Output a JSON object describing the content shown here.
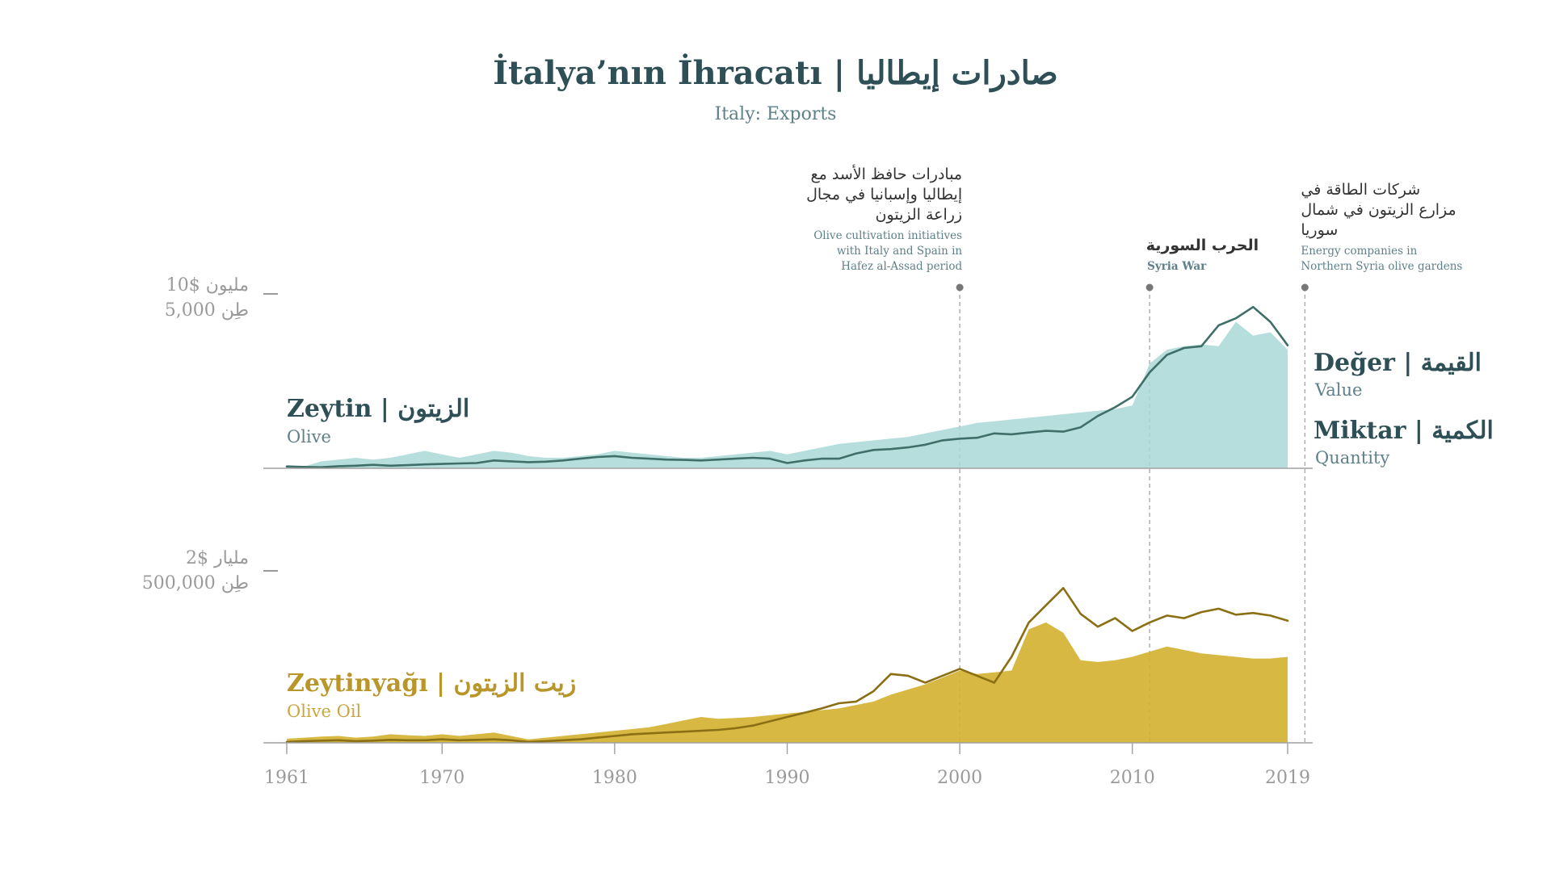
{
  "title": "İtalya’nın İhracatı  |  صادرات إيطاليا",
  "subtitle": "Italy: Exports",
  "colors": {
    "olive_line": "#3f6f68",
    "olive_area": "#a9d8d6",
    "oil_line": "#8a6f14",
    "oil_area": "#d4b232",
    "text_dark": "#2d4f55",
    "gold_text": "#b8962a",
    "axis": "#9a9a9a",
    "guide": "#aaaaaa"
  },
  "annotations": [
    {
      "year": 2000,
      "ar": [
        "مبادرات حافظ الأسد مع",
        "إيطاليا وإسبانيا في مجال",
        "زراعة الزيتون"
      ],
      "en": [
        "Olive cultivation initiatives",
        "with Italy and Spain in",
        "Hafez al-Assad period"
      ],
      "bold": false
    },
    {
      "year": 2011,
      "ar": [
        "الحرب السورية"
      ],
      "en": [
        "Syria War"
      ],
      "bold": true
    },
    {
      "year": 2020,
      "ar": [
        "شركات الطاقة في",
        "مزارع الزيتون في شمال",
        "سوريا"
      ],
      "en": [
        "Energy companies in",
        "Northern Syria olive gardens"
      ],
      "bold": false
    }
  ],
  "legend_right": {
    "value_title": "Değer | القيمة",
    "value_sub": "Value",
    "quantity_title": "Miktar | الكمية",
    "quantity_sub": "Quantity"
  },
  "chart_data": [
    {
      "type": "area",
      "name": "Zeytin | الزيتون",
      "subtitle": "Olive",
      "scale_label": [
        "مليون $10",
        "طِن 5,000"
      ],
      "value_max_usd": 10000000,
      "quantity_max_tonnes": 5000,
      "x": [
        1961,
        1962,
        1963,
        1964,
        1965,
        1966,
        1967,
        1968,
        1969,
        1970,
        1971,
        1972,
        1973,
        1974,
        1975,
        1976,
        1977,
        1978,
        1979,
        1980,
        1981,
        1982,
        1983,
        1984,
        1985,
        1986,
        1987,
        1988,
        1989,
        1990,
        1991,
        1992,
        1993,
        1994,
        1995,
        1996,
        1997,
        1998,
        1999,
        2000,
        2001,
        2002,
        2003,
        2004,
        2005,
        2006,
        2007,
        2008,
        2009,
        2010,
        2011,
        2012,
        2013,
        2014,
        2015,
        2016,
        2017,
        2018,
        2019
      ],
      "series": [
        {
          "name": "Value",
          "values_usd": [
            100000,
            80000,
            60000,
            120000,
            150000,
            200000,
            150000,
            180000,
            220000,
            250000,
            280000,
            300000,
            450000,
            400000,
            350000,
            380000,
            450000,
            550000,
            650000,
            700000,
            600000,
            550000,
            500000,
            480000,
            450000,
            500000,
            550000,
            600000,
            550000,
            300000,
            450000,
            550000,
            550000,
            850000,
            1050000,
            1100000,
            1200000,
            1350000,
            1600000,
            1700000,
            1750000,
            2000000,
            1950000,
            2050000,
            2150000,
            2100000,
            2350000,
            3000000,
            3500000,
            4100000,
            5500000,
            6500000,
            6900000,
            7000000,
            8200000,
            8600000,
            9250000,
            8400000,
            7050000
          ]
        },
        {
          "name": "Quantity",
          "values_tonnes": [
            100,
            50,
            200,
            250,
            300,
            250,
            300,
            400,
            500,
            400,
            300,
            400,
            500,
            450,
            350,
            300,
            300,
            350,
            400,
            500,
            450,
            400,
            350,
            300,
            300,
            350,
            400,
            450,
            500,
            400,
            500,
            600,
            700,
            750,
            800,
            850,
            900,
            1000,
            1100,
            1200,
            1300,
            1350,
            1400,
            1450,
            1500,
            1550,
            1600,
            1650,
            1700,
            1800,
            3000,
            3400,
            3500,
            3550,
            3500,
            4200,
            3800,
            3900,
            3400
          ]
        }
      ]
    },
    {
      "type": "area",
      "name": "Zeytinyağı | زيت الزيتون",
      "subtitle": "Olive Oil",
      "scale_label": [
        "مليار $2",
        "طِن 500,000"
      ],
      "value_max_usd": 2000000000,
      "quantity_max_tonnes": 500000,
      "x": [
        1961,
        1962,
        1963,
        1964,
        1965,
        1966,
        1967,
        1968,
        1969,
        1970,
        1971,
        1972,
        1973,
        1974,
        1975,
        1976,
        1977,
        1978,
        1979,
        1980,
        1981,
        1982,
        1983,
        1984,
        1985,
        1986,
        1987,
        1988,
        1989,
        1990,
        1991,
        1992,
        1993,
        1994,
        1995,
        1996,
        1997,
        1998,
        1999,
        2000,
        2001,
        2002,
        2003,
        2004,
        2005,
        2006,
        2007,
        2008,
        2009,
        2010,
        2011,
        2012,
        2013,
        2014,
        2015,
        2016,
        2017,
        2018,
        2019
      ],
      "series": [
        {
          "name": "Value",
          "values_usd": [
            10000000,
            20000000,
            25000000,
            30000000,
            20000000,
            25000000,
            35000000,
            30000000,
            30000000,
            40000000,
            30000000,
            35000000,
            40000000,
            30000000,
            10000000,
            20000000,
            30000000,
            40000000,
            60000000,
            80000000,
            100000000,
            110000000,
            120000000,
            130000000,
            140000000,
            150000000,
            170000000,
            200000000,
            250000000,
            300000000,
            350000000,
            400000000,
            460000000,
            480000000,
            600000000,
            800000000,
            780000000,
            700000000,
            780000000,
            860000000,
            780000000,
            700000000,
            1000000000,
            1400000000,
            1600000000,
            1800000000,
            1500000000,
            1350000000,
            1450000000,
            1300000000,
            1400000000,
            1480000000,
            1450000000,
            1520000000,
            1560000000,
            1490000000,
            1510000000,
            1480000000,
            1420000000
          ]
        },
        {
          "name": "Quantity",
          "values_tonnes": [
            12000,
            15000,
            18000,
            20000,
            15000,
            18000,
            25000,
            22000,
            20000,
            25000,
            20000,
            25000,
            30000,
            20000,
            10000,
            15000,
            20000,
            25000,
            30000,
            35000,
            40000,
            45000,
            55000,
            65000,
            75000,
            70000,
            72000,
            75000,
            80000,
            85000,
            90000,
            95000,
            100000,
            110000,
            120000,
            140000,
            155000,
            170000,
            190000,
            210000,
            200000,
            205000,
            210000,
            330000,
            350000,
            320000,
            240000,
            235000,
            240000,
            250000,
            265000,
            280000,
            270000,
            260000,
            255000,
            250000,
            245000,
            245000,
            250000
          ]
        }
      ]
    }
  ],
  "x_axis_ticks": [
    "1961",
    "1970",
    "1980",
    "1990",
    "2000",
    "2010",
    "2019"
  ]
}
